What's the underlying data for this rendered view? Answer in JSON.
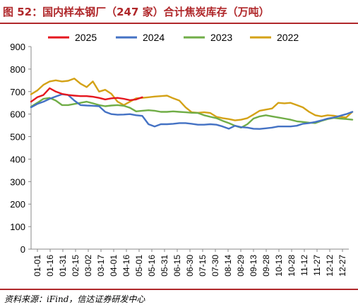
{
  "title": "图 52：国内样本钢厂（247 家）合计焦炭库存（万吨）",
  "source": "资料来源：iFind，信达证券研发中心",
  "chart_data": {
    "type": "line",
    "x_ticks": [
      "01-01",
      "01-16",
      "01-31",
      "02-15",
      "03-02",
      "03-17",
      "04-01",
      "04-16",
      "05-01",
      "05-16",
      "05-31",
      "06-15",
      "06-30",
      "07-15",
      "07-30",
      "08-14",
      "08-29",
      "09-13",
      "09-28",
      "10-13",
      "10-28",
      "11-12",
      "11-27",
      "12-12",
      "12-27"
    ],
    "y_ticks": [
      0,
      100,
      200,
      300,
      400,
      500,
      600,
      700,
      800,
      900
    ],
    "ylim": [
      0,
      900
    ],
    "xlim": [
      0,
      360
    ],
    "grid": false,
    "legend_position": "top",
    "series": [
      {
        "name": "2025",
        "color": "#e5171f",
        "x": [
          0,
          7,
          14,
          21,
          28,
          35,
          42,
          49,
          56,
          63,
          70,
          77,
          84,
          91,
          98,
          105,
          112,
          119,
          126
        ],
        "y": [
          655,
          675,
          685,
          715,
          700,
          690,
          685,
          682,
          680,
          680,
          677,
          672,
          665,
          670,
          672,
          668,
          662,
          665,
          675
        ]
      },
      {
        "name": "2024",
        "color": "#4472c4",
        "x": [
          0,
          7,
          14,
          21,
          28,
          35,
          42,
          49,
          56,
          63,
          70,
          77,
          84,
          91,
          98,
          105,
          112,
          119,
          126,
          133,
          140,
          147,
          154,
          161,
          168,
          175,
          182,
          189,
          196,
          203,
          210,
          217,
          224,
          231,
          238,
          245,
          252,
          259,
          266,
          273,
          280,
          287,
          294,
          301,
          308,
          315,
          322,
          329,
          336,
          343,
          350,
          357,
          364
        ],
        "y": [
          630,
          645,
          655,
          668,
          678,
          688,
          685,
          660,
          640,
          638,
          637,
          635,
          610,
          600,
          597,
          598,
          600,
          595,
          592,
          555,
          545,
          555,
          555,
          557,
          560,
          560,
          557,
          553,
          553,
          555,
          553,
          545,
          535,
          548,
          542,
          540,
          535,
          534,
          537,
          540,
          545,
          545,
          545,
          548,
          557,
          560,
          565,
          572,
          580,
          585,
          592,
          600,
          610
        ]
      },
      {
        "name": "2023",
        "color": "#70ad47",
        "x": [
          0,
          7,
          14,
          21,
          28,
          35,
          42,
          49,
          56,
          63,
          70,
          77,
          84,
          91,
          98,
          105,
          112,
          119,
          126,
          133,
          140,
          147,
          154,
          161,
          168,
          175,
          182,
          189,
          196,
          203,
          210,
          217,
          224,
          231,
          238,
          245,
          252,
          259,
          266,
          273,
          280,
          287,
          294,
          301,
          308,
          315,
          322,
          329,
          336,
          343,
          350,
          357,
          364
        ],
        "y": [
          633,
          650,
          668,
          672,
          660,
          640,
          640,
          645,
          650,
          655,
          648,
          640,
          635,
          638,
          640,
          637,
          628,
          612,
          615,
          617,
          615,
          610,
          610,
          612,
          610,
          608,
          606,
          605,
          595,
          588,
          582,
          570,
          560,
          548,
          540,
          555,
          580,
          590,
          595,
          590,
          585,
          580,
          575,
          568,
          565,
          562,
          560,
          570,
          578,
          583,
          580,
          578,
          575
        ]
      },
      {
        "name": "2022",
        "color": "#d4a217",
        "x": [
          0,
          7,
          14,
          21,
          28,
          35,
          42,
          49,
          56,
          63,
          70,
          77,
          84,
          91,
          98,
          105,
          112,
          119,
          126,
          133,
          140,
          147,
          154,
          161,
          168,
          175,
          182,
          189,
          196,
          203,
          210,
          217,
          224,
          231,
          238,
          245,
          252,
          259,
          266,
          273,
          280,
          287,
          294,
          301,
          308,
          315,
          322,
          329,
          336,
          343,
          350,
          357,
          364
        ],
        "y": [
          688,
          705,
          730,
          745,
          750,
          745,
          748,
          758,
          735,
          720,
          745,
          700,
          708,
          690,
          655,
          640,
          655,
          670,
          672,
          675,
          678,
          680,
          682,
          670,
          660,
          630,
          608,
          606,
          608,
          605,
          588,
          582,
          578,
          572,
          575,
          582,
          598,
          615,
          620,
          625,
          650,
          648,
          650,
          640,
          630,
          610,
          595,
          590,
          595,
          593,
          588,
          585,
          610
        ]
      }
    ]
  }
}
